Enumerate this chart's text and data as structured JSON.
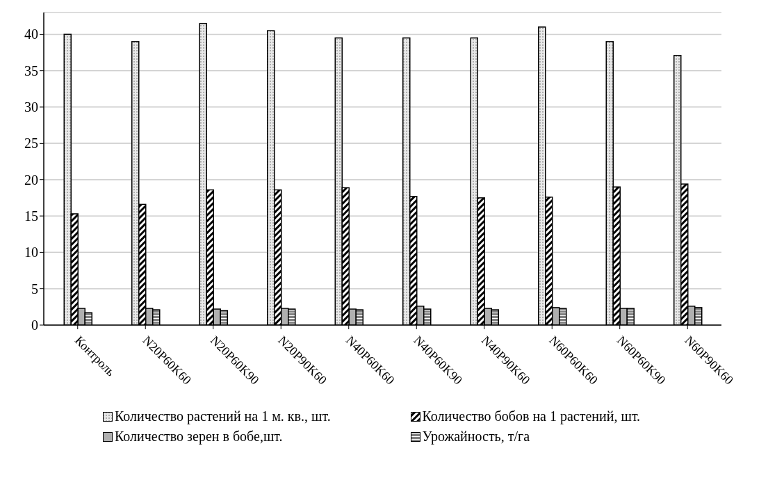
{
  "chart_data": {
    "type": "bar",
    "categories": [
      "Контроль",
      "N20P60K60",
      "N20P60K90",
      "N20P90K60",
      "N40P60K60",
      "N40P60K90",
      "N40P90K60",
      "N60P60K60",
      "N60P60K90",
      "N60P90K60"
    ],
    "series": [
      {
        "name": "Количество растений на 1 м. кв., шт.",
        "color": "#e8e8e8",
        "values": [
          40,
          39,
          41.5,
          40.5,
          39.5,
          39.5,
          39.5,
          41,
          39,
          37.1
        ]
      },
      {
        "name": "Количество бобов на 1 растений, шт.",
        "color": "#000000",
        "values": [
          15.3,
          16.6,
          18.6,
          18.6,
          18.9,
          17.7,
          17.5,
          17.6,
          19.0,
          19.4
        ]
      },
      {
        "name": "Количество зерен в бобе,шт.",
        "color": "#b0b0b0",
        "values": [
          2.3,
          2.3,
          2.2,
          2.3,
          2.2,
          2.6,
          2.3,
          2.4,
          2.3,
          2.6
        ]
      },
      {
        "name": "Урожайность, т/га",
        "color": "#808080",
        "values": [
          1.7,
          2.1,
          2.0,
          2.2,
          2.1,
          2.2,
          2.1,
          2.3,
          2.3,
          2.4
        ]
      }
    ],
    "ylim": [
      0,
      43
    ],
    "yticks": [
      0,
      5,
      10,
      15,
      20,
      25,
      30,
      35,
      40
    ],
    "grid": "y",
    "legend": "bottom"
  }
}
